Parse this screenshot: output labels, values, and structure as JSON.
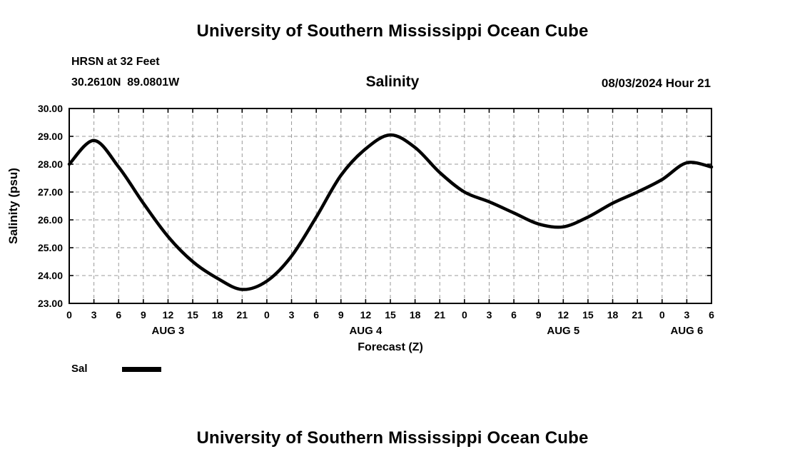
{
  "page": {
    "top_title": "University of Southern Mississippi Ocean Cube",
    "bottom_title": "University of Southern Mississippi Ocean Cube"
  },
  "header": {
    "station": "HRSN at 32 Feet",
    "coordinates": "30.2610N  89.0801W",
    "chart_title": "Salinity",
    "forecast_datetime": "08/03/2024 Hour 21"
  },
  "legend": {
    "label": "Sal",
    "line_color": "#000000"
  },
  "chart_data": {
    "type": "line",
    "title": "Salinity",
    "xlabel": "Forecast (Z)",
    "ylabel": "Salinity (psu)",
    "xlim": [
      0,
      78
    ],
    "ylim": [
      23,
      30
    ],
    "grid": true,
    "grid_style": "dashed",
    "legend_position": "bottom-left",
    "ytick_values": [
      23,
      24,
      25,
      26,
      27,
      28,
      29,
      30
    ],
    "ytick_labels": [
      "23.00",
      "24.00",
      "25.00",
      "26.00",
      "27.00",
      "28.00",
      "29.00",
      "30.00"
    ],
    "xtick_hours": [
      0,
      3,
      6,
      9,
      12,
      15,
      18,
      21,
      24,
      27,
      30,
      33,
      36,
      39,
      42,
      45,
      48,
      51,
      54,
      57,
      60,
      63,
      66,
      69,
      72,
      75,
      78
    ],
    "xtick_labels": [
      "0",
      "3",
      "6",
      "9",
      "12",
      "15",
      "18",
      "21",
      "0",
      "3",
      "6",
      "9",
      "12",
      "15",
      "18",
      "21",
      "0",
      "3",
      "6",
      "9",
      "12",
      "15",
      "18",
      "21",
      "0",
      "3",
      "6"
    ],
    "day_labels": [
      {
        "label": "AUG 3",
        "center_hour": 12
      },
      {
        "label": "AUG 4",
        "center_hour": 36
      },
      {
        "label": "AUG 5",
        "center_hour": 60
      },
      {
        "label": "AUG 6",
        "center_hour": 75
      }
    ],
    "series": [
      {
        "name": "Sal",
        "color": "#000000",
        "x_hours": [
          0,
          3,
          6,
          9,
          12,
          15,
          18,
          21,
          24,
          27,
          30,
          33,
          36,
          39,
          42,
          45,
          48,
          51,
          54,
          57,
          60,
          63,
          66,
          69,
          72,
          75,
          78
        ],
        "values": [
          28.0,
          28.85,
          27.9,
          26.6,
          25.4,
          24.5,
          23.9,
          23.5,
          23.8,
          24.7,
          26.1,
          27.6,
          28.55,
          29.05,
          28.6,
          27.7,
          27.0,
          26.65,
          26.25,
          25.85,
          25.75,
          26.1,
          26.6,
          27.0,
          27.45,
          28.05,
          27.9
        ]
      }
    ]
  }
}
